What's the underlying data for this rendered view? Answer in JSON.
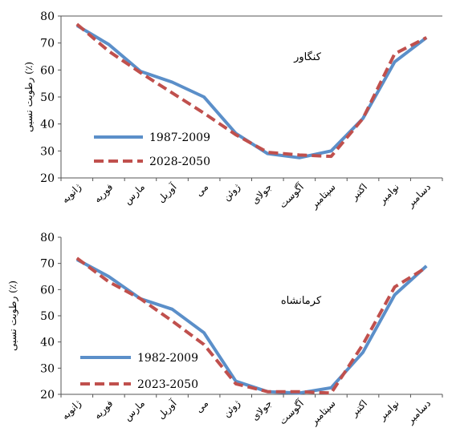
{
  "chart_data": [
    {
      "type": "line",
      "title": "کنگاور",
      "ylabel": "رطوبت نسبی (٪)",
      "xlabel": "",
      "ylim": [
        20,
        80
      ],
      "yticks": [
        20,
        30,
        40,
        50,
        60,
        70,
        80
      ],
      "grid": false,
      "legend_position": "bottom-left",
      "categories": [
        "ژانویه",
        "فوریه",
        "مارس",
        "آوریل",
        "می",
        "ژوئن",
        "جولای",
        "آگوست",
        "سپتامبر",
        "اکتبر",
        "نوامبر",
        "دسامبر"
      ],
      "series": [
        {
          "name": "1987-2009",
          "style": "solid",
          "color": "#5b8fc9",
          "values": [
            76.5,
            69.5,
            59.5,
            55.5,
            50,
            36.5,
            29,
            27.5,
            30,
            42,
            63,
            72
          ]
        },
        {
          "name": "2028-2050",
          "style": "dashed",
          "color": "#c0504d",
          "values": [
            77,
            67,
            59,
            51.5,
            44,
            36,
            29.5,
            28.5,
            28,
            42,
            66,
            72
          ]
        }
      ]
    },
    {
      "type": "line",
      "title": "کرمانشاه",
      "ylabel": "رطوبت نسبی (٪)",
      "xlabel": "",
      "ylim": [
        20,
        80
      ],
      "yticks": [
        20,
        30,
        40,
        50,
        60,
        70,
        80
      ],
      "grid": false,
      "legend_position": "bottom-left",
      "categories": [
        "ژانویه",
        "فوریه",
        "مارس",
        "آوریل",
        "می",
        "ژوئن",
        "جولای",
        "آگوست",
        "سپتامبر",
        "اکتبر",
        "نوامبر",
        "دسامبر"
      ],
      "series": [
        {
          "name": "1982-2009",
          "style": "solid",
          "color": "#5b8fc9",
          "values": [
            71.5,
            65,
            56.5,
            52.5,
            43.5,
            25,
            21,
            20.5,
            22.5,
            36,
            58,
            69
          ]
        },
        {
          "name": "2023-2050",
          "style": "dashed",
          "color": "#c0504d",
          "values": [
            72,
            63,
            56.5,
            48,
            39,
            24,
            21,
            21,
            20.5,
            39,
            61,
            68.5
          ]
        }
      ]
    }
  ]
}
